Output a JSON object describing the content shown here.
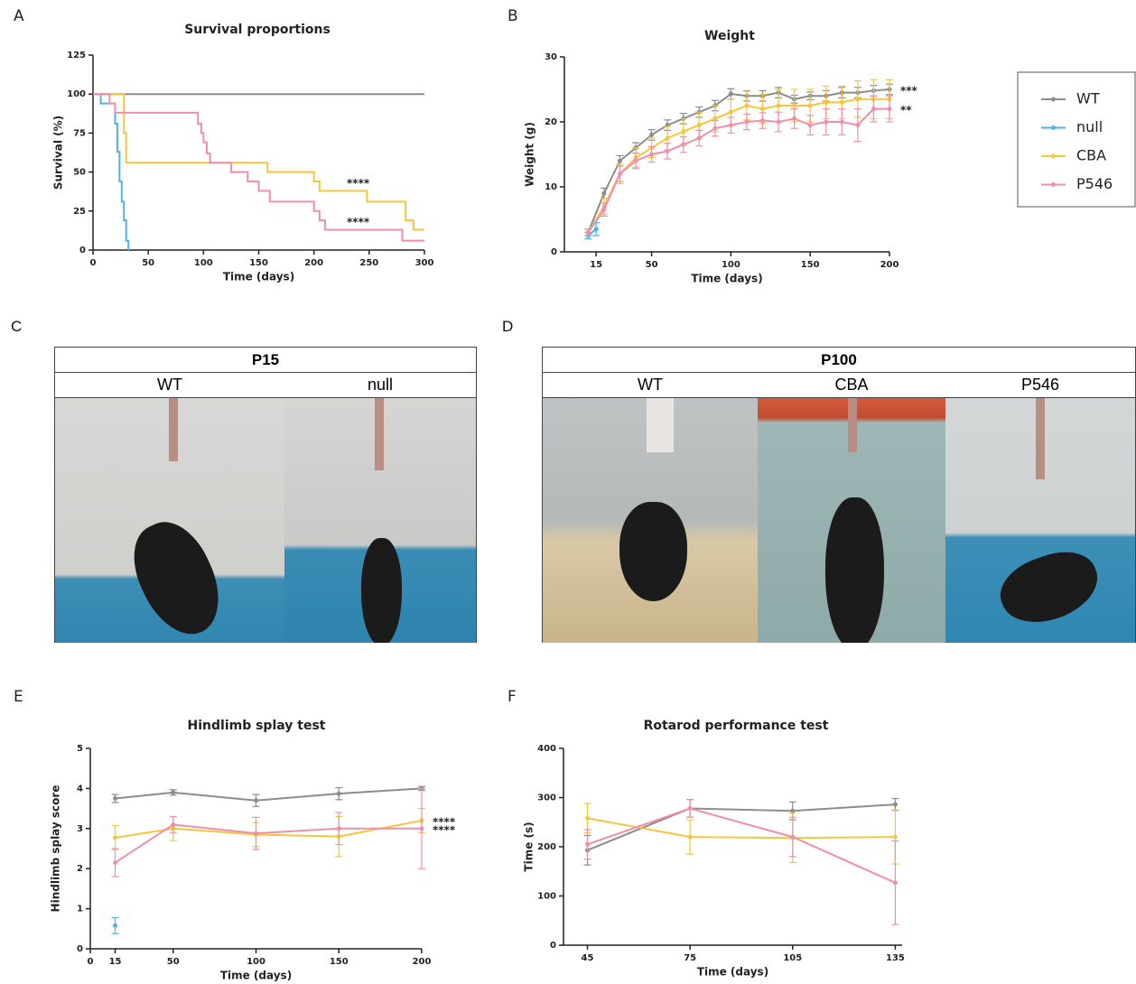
{
  "chart_data": [
    {
      "type": "step",
      "label": "A",
      "title": "Survival proportions",
      "xlabel": "Time (days)",
      "ylabel": "Survival (%)",
      "xlim": [
        0,
        300
      ],
      "xticks": [
        0,
        50,
        100,
        150,
        200,
        250,
        300
      ],
      "ylim": [
        0,
        125
      ],
      "yticks": [
        0,
        25,
        50,
        75,
        100,
        125
      ],
      "legend": false,
      "series": [
        {
          "color": "#8c8c8c",
          "x": [
            0,
            300
          ],
          "values": [
            100,
            100
          ]
        },
        {
          "color": "#4db3ea",
          "x": [
            0,
            7,
            20,
            22,
            24,
            26,
            28,
            30,
            32
          ],
          "values": [
            100,
            94,
            81,
            63,
            44,
            31,
            19,
            6,
            0
          ]
        },
        {
          "color": "#f4c63d",
          "x": [
            0,
            28,
            30,
            158,
            200,
            205,
            248,
            283,
            290,
            300
          ],
          "values": [
            100,
            75,
            56,
            50,
            44,
            38,
            31,
            19,
            13,
            13
          ],
          "annotation": "****"
        },
        {
          "color": "#f08fa8",
          "x": [
            0,
            15,
            20,
            95,
            98,
            100,
            103,
            106,
            125,
            140,
            150,
            160,
            200,
            205,
            210,
            280,
            300
          ],
          "values": [
            100,
            94,
            88,
            81,
            75,
            69,
            62,
            56,
            50,
            44,
            38,
            31,
            25,
            19,
            13,
            6,
            6
          ],
          "annotation": "****"
        }
      ]
    },
    {
      "type": "line",
      "label": "B",
      "title": "Weight",
      "xlabel": "Time (days)",
      "ylabel": "Weight (g)",
      "xlim": [
        -5,
        200
      ],
      "xticks": [
        15,
        50,
        100,
        150,
        200
      ],
      "ylim": [
        0,
        30
      ],
      "yticks": [
        0,
        10,
        20,
        30
      ],
      "legend": true,
      "series": [
        {
          "name": "WT",
          "color": "#8c8c8c",
          "x": [
            10,
            20,
            30,
            40,
            50,
            60,
            70,
            80,
            90,
            100,
            110,
            120,
            130,
            140,
            150,
            160,
            170,
            180,
            190,
            200
          ],
          "values": [
            3,
            9,
            14,
            16,
            18,
            19.5,
            20.5,
            21.5,
            22.5,
            24.3,
            24,
            24,
            24.5,
            23.5,
            24,
            24,
            24.5,
            24.5,
            24.8,
            25
          ],
          "errors": [
            0.5,
            0.8,
            0.8,
            0.8,
            0.8,
            0.8,
            0.8,
            0.8,
            0.8,
            0.8,
            0.8,
            0.8,
            0.8,
            0.6,
            0.6,
            0.8,
            0.8,
            0.8,
            0.8,
            0.8
          ],
          "annotation": "***"
        },
        {
          "name": "null",
          "color": "#4db3ea",
          "x": [
            10,
            15
          ],
          "values": [
            2.5,
            3.5
          ],
          "errors": [
            0.5,
            1
          ]
        },
        {
          "name": "CBA",
          "color": "#f4c63d",
          "x": [
            10,
            20,
            30,
            40,
            50,
            60,
            70,
            80,
            90,
            100,
            110,
            120,
            130,
            140,
            150,
            160,
            170,
            180,
            190,
            200
          ],
          "values": [
            3,
            7,
            12,
            14.5,
            16,
            17.5,
            18.5,
            19.5,
            20.5,
            21.5,
            22.5,
            22,
            22.5,
            22.5,
            22.5,
            23,
            23,
            23.5,
            23.5,
            23.5
          ],
          "errors": [
            0.5,
            1.2,
            1.5,
            1.5,
            1.5,
            1.8,
            2,
            2,
            2,
            2,
            2.2,
            2.2,
            2.5,
            2.5,
            2.5,
            2.5,
            2.5,
            2.8,
            3,
            3
          ]
        },
        {
          "name": "P546",
          "color": "#f08fa8",
          "x": [
            10,
            20,
            30,
            40,
            50,
            60,
            70,
            80,
            90,
            100,
            110,
            120,
            130,
            140,
            150,
            160,
            170,
            180,
            190,
            200
          ],
          "values": [
            3,
            6.5,
            12,
            14,
            15,
            15.5,
            16.5,
            17.5,
            19,
            19.5,
            20,
            20.2,
            20,
            20.5,
            19.5,
            20,
            20,
            19.5,
            22,
            22
          ],
          "errors": [
            0.5,
            1,
            1.2,
            1.2,
            1.2,
            1.2,
            1.2,
            1.2,
            1.2,
            1.2,
            1.2,
            1.2,
            1.5,
            1.5,
            1.5,
            2,
            2,
            2.5,
            2,
            2
          ],
          "annotation": "**"
        }
      ]
    },
    {
      "type": "line",
      "label": "E",
      "title": "Hindlimb splay test",
      "xlabel": "Time (days)",
      "ylabel": "Hindlimb splay score",
      "xlim": [
        0,
        200
      ],
      "xticks": [
        0,
        15,
        50,
        100,
        150,
        200
      ],
      "ylim": [
        0,
        5
      ],
      "yticks": [
        0,
        1,
        2,
        3,
        4,
        5
      ],
      "legend": false,
      "series": [
        {
          "color": "#8c8c8c",
          "x": [
            15,
            50,
            100,
            150,
            200
          ],
          "values": [
            3.75,
            3.9,
            3.7,
            3.87,
            4.0
          ],
          "errors": [
            0.1,
            0.07,
            0.15,
            0.15,
            0.05
          ]
        },
        {
          "color": "#4db3ea",
          "x": [
            15,
            50,
            100,
            150,
            200
          ],
          "values": [
            0.58,
            null,
            null,
            null,
            null
          ],
          "errors": [
            0.2,
            null,
            null,
            null,
            null
          ]
        },
        {
          "color": "#f4c63d",
          "x": [
            15,
            50,
            100,
            150,
            200
          ],
          "values": [
            2.77,
            3.0,
            2.85,
            2.8,
            3.2
          ],
          "errors": [
            0.3,
            0.3,
            0.3,
            0.5,
            0.3
          ],
          "annotation": "****"
        },
        {
          "color": "#f08fa8",
          "x": [
            15,
            50,
            100,
            150,
            200
          ],
          "values": [
            2.15,
            3.1,
            2.88,
            3.0,
            3.0
          ],
          "errors": [
            0.35,
            0.2,
            0.4,
            0.4,
            1.0
          ],
          "annotation": "****"
        }
      ]
    },
    {
      "type": "line",
      "label": "F",
      "title": "Rotarod performance test",
      "xlabel": "Time (days)",
      "ylabel": "Time (s)",
      "xlim": [
        38,
        137
      ],
      "xticks": [
        45,
        75,
        105,
        135
      ],
      "ylim": [
        0,
        400
      ],
      "yticks": [
        0,
        100,
        200,
        300,
        400
      ],
      "legend": false,
      "series": [
        {
          "color": "#8c8c8c",
          "x": [
            45,
            75,
            105,
            135
          ],
          "values": [
            193,
            278,
            273,
            286
          ],
          "errors": [
            30,
            18,
            18,
            12
          ]
        },
        {
          "color": "#f4c63d",
          "x": [
            45,
            75,
            105,
            135
          ],
          "values": [
            258,
            220,
            218,
            220
          ],
          "errors": [
            30,
            35,
            50,
            55
          ]
        },
        {
          "color": "#f08fa8",
          "x": [
            45,
            75,
            105,
            135
          ],
          "values": [
            205,
            278,
            220,
            127
          ],
          "errors": [
            30,
            18,
            40,
            85
          ]
        }
      ]
    }
  ],
  "photo_panels": [
    {
      "label": "C",
      "header": "P15",
      "columns": [
        "WT",
        "null"
      ]
    },
    {
      "label": "D",
      "header": "P100",
      "columns": [
        "WT",
        "CBA",
        "P546"
      ]
    }
  ]
}
